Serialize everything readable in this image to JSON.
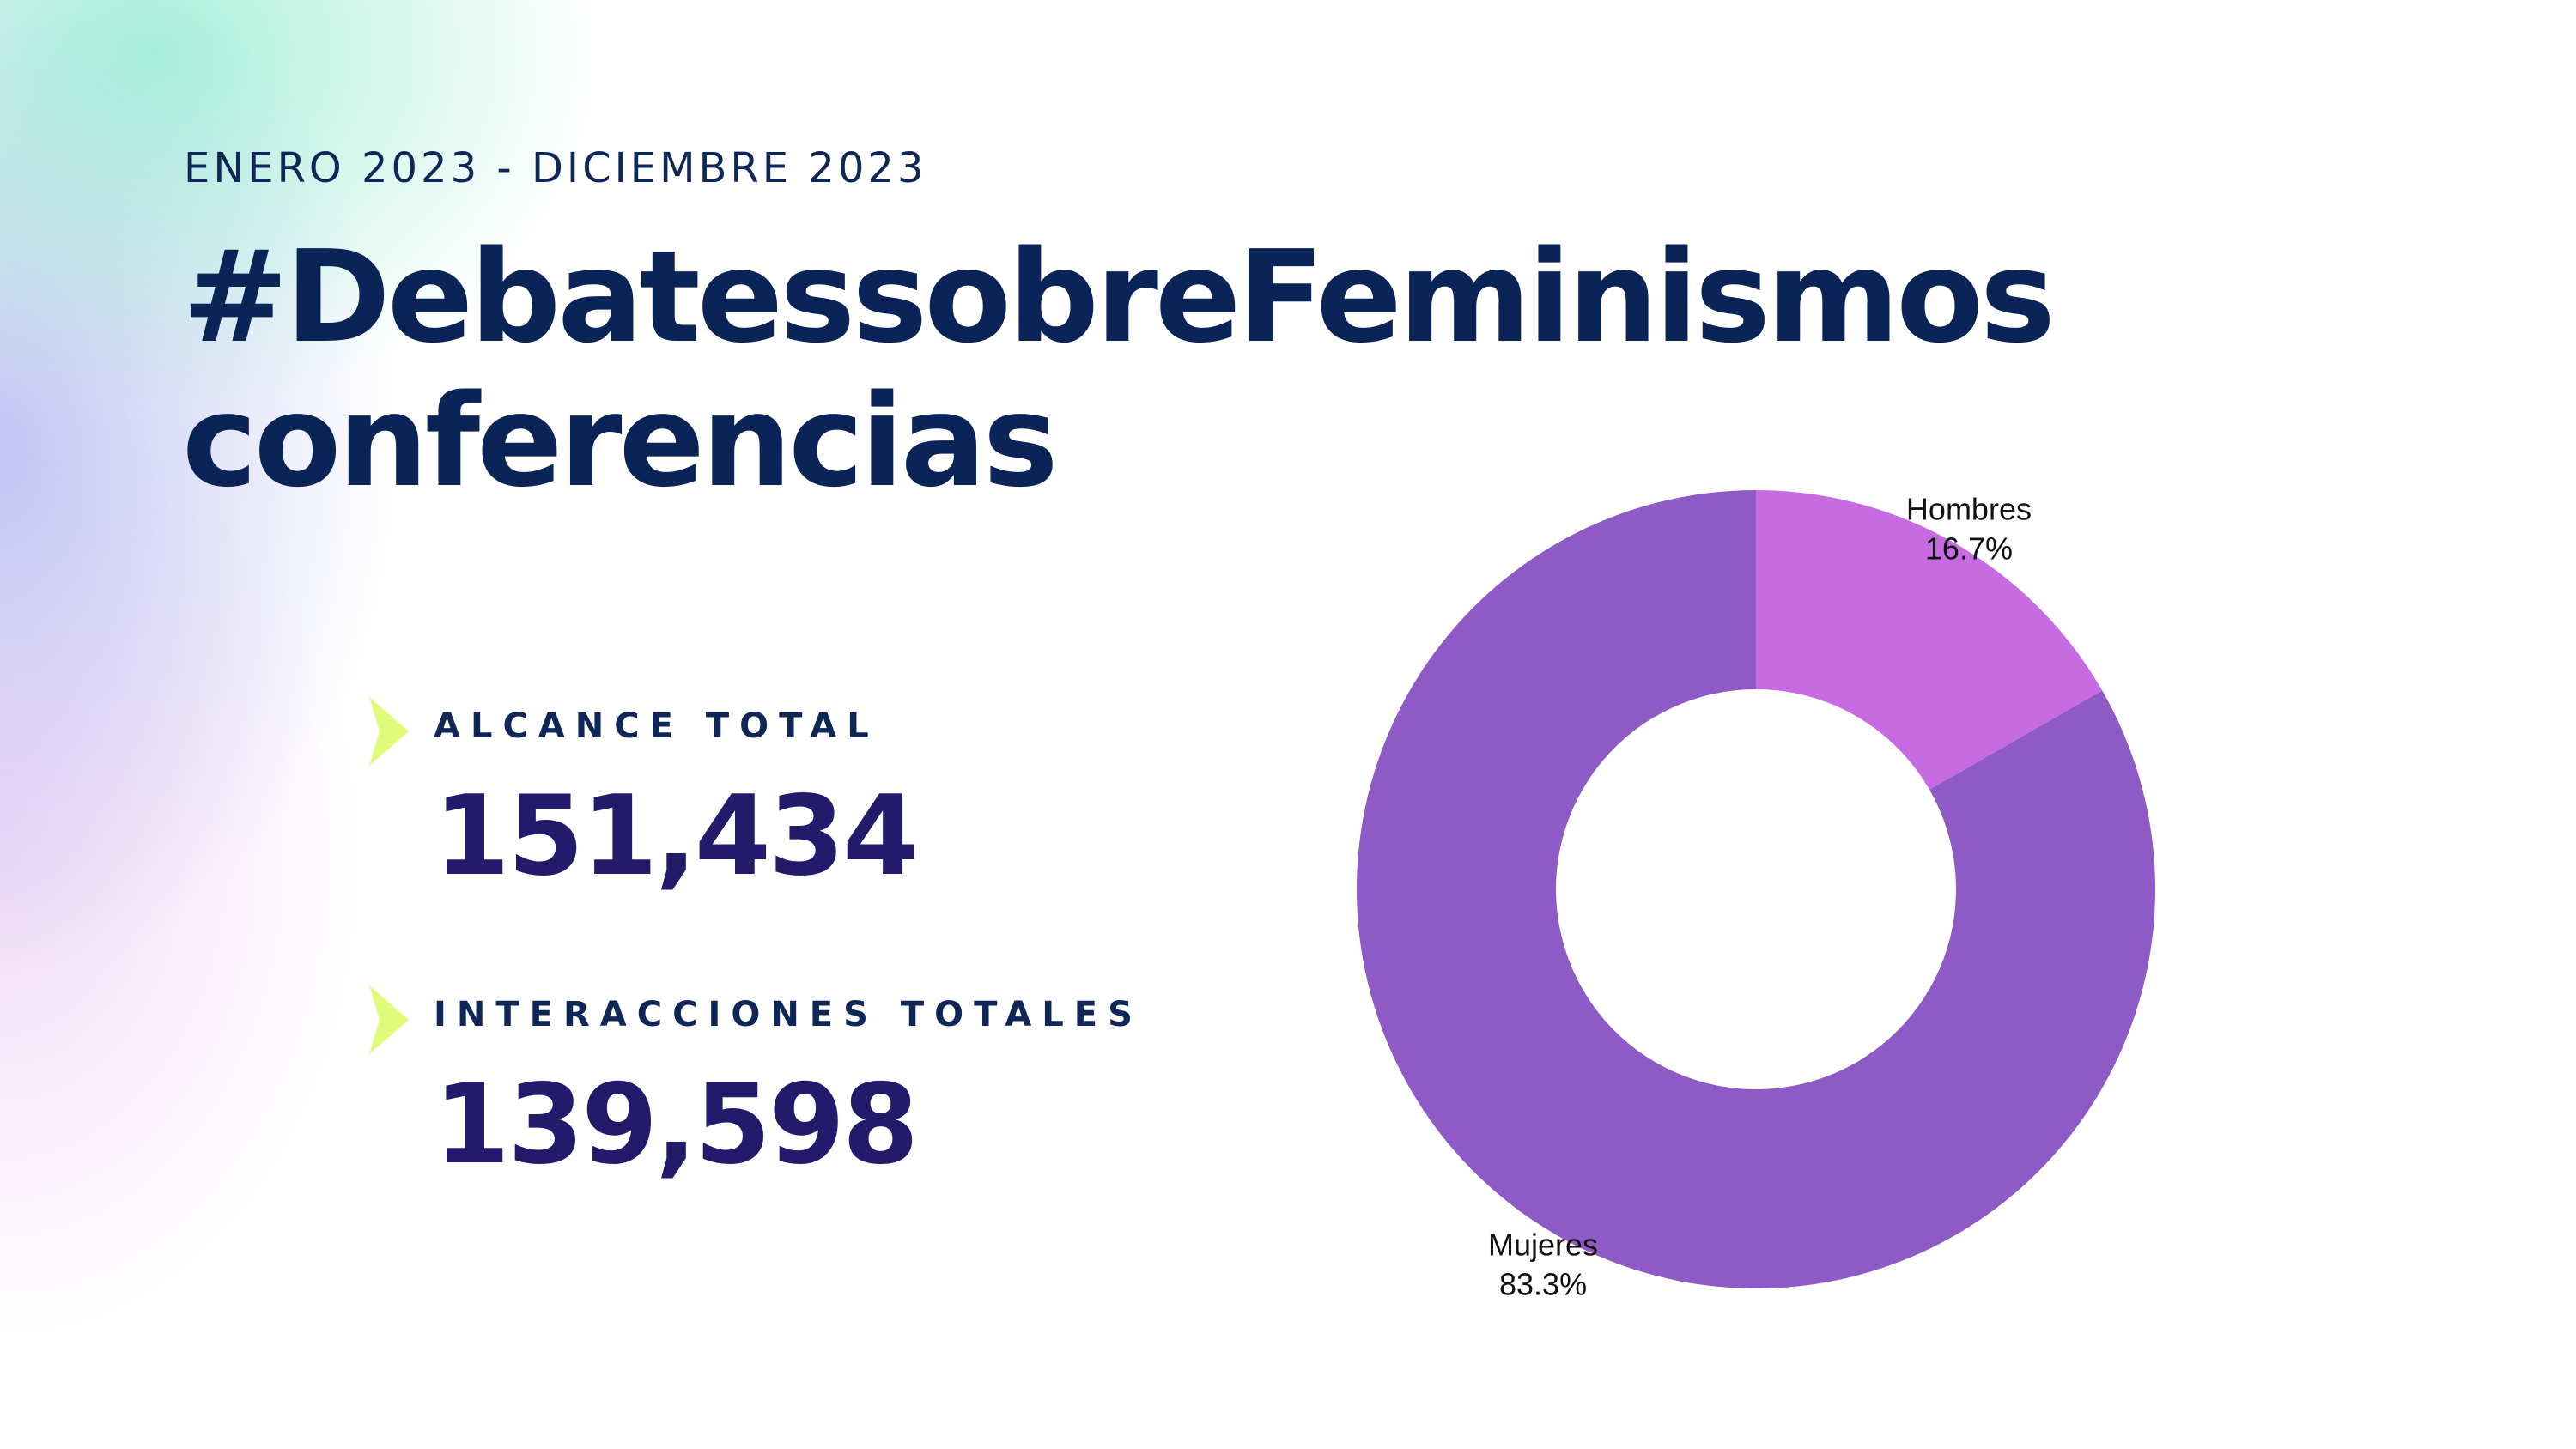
{
  "header": {
    "period": "ENERO 2023 - DICIEMBRE 2023",
    "title_line1": "#DebatessobreFeminismos",
    "title_line2": "conferencias"
  },
  "stats": [
    {
      "label": "ALCANCE TOTAL",
      "value": "151,434"
    },
    {
      "label": "INTERACCIONES TOTALES",
      "value": "139,598"
    }
  ],
  "colors": {
    "title": "#0a2457",
    "value": "#241a6b",
    "arrow": "#e0fb7a",
    "mujeres": "#8e5bc6",
    "hombres": "#c76be3"
  },
  "chart_data": {
    "type": "pie",
    "donut": true,
    "categories": [
      "Hombres",
      "Mujeres"
    ],
    "values": [
      16.7,
      83.3
    ],
    "labels": [
      "16.7%",
      "83.3%"
    ],
    "colors": [
      "#c76be3",
      "#8e5bc6"
    ],
    "legend": "none"
  }
}
